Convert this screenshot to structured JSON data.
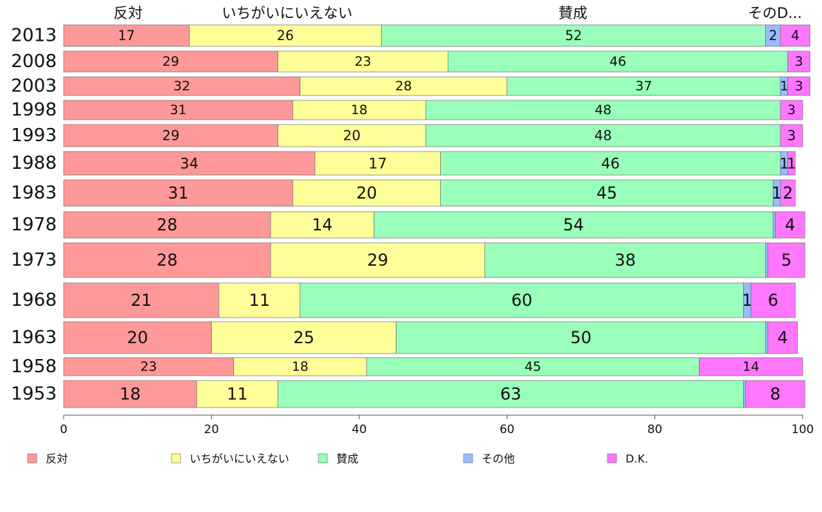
{
  "chart_data": {
    "type": "bar",
    "orientation": "horizontal",
    "stacked": true,
    "categories": [
      "2013",
      "2008",
      "2003",
      "1998",
      "1993",
      "1988",
      "1983",
      "1978",
      "1973",
      "1968",
      "1963",
      "1958",
      "1953"
    ],
    "series": [
      {
        "name": "反対",
        "color": "#ff9999",
        "values": [
          17,
          29,
          32,
          31,
          29,
          34,
          31,
          28,
          28,
          21,
          20,
          23,
          18
        ]
      },
      {
        "name": "いちがいにいえない",
        "color": "#ffff99",
        "values": [
          26,
          23,
          28,
          18,
          20,
          17,
          20,
          14,
          29,
          11,
          25,
          18,
          11
        ]
      },
      {
        "name": "賛成",
        "color": "#99ffbb",
        "values": [
          52,
          46,
          37,
          48,
          48,
          46,
          45,
          54,
          38,
          60,
          50,
          45,
          63
        ]
      },
      {
        "name": "その他",
        "color": "#99bbff",
        "values": [
          2,
          0,
          1,
          0,
          0,
          1,
          1,
          0.3,
          0.3,
          1,
          0.3,
          0,
          0.3
        ]
      },
      {
        "name": "D.K.",
        "color": "#ff77ff",
        "values": [
          4,
          3,
          3,
          3,
          3,
          1,
          2,
          4,
          5,
          6,
          4,
          14,
          8
        ]
      }
    ],
    "header_labels": [
      "反対",
      "いちがいにいえない",
      "賛成",
      "そのD..."
    ],
    "xlim": [
      0,
      100
    ],
    "xticks": [
      0,
      20,
      40,
      60,
      80,
      100
    ],
    "grid": false,
    "legend_position": "bottom"
  }
}
